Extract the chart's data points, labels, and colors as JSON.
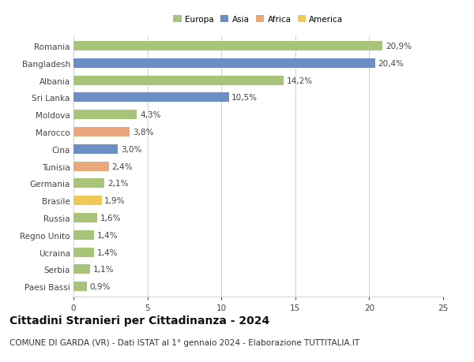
{
  "categories": [
    "Romania",
    "Bangladesh",
    "Albania",
    "Sri Lanka",
    "Moldova",
    "Marocco",
    "Cina",
    "Tunisia",
    "Germania",
    "Brasile",
    "Russia",
    "Regno Unito",
    "Ucraina",
    "Serbia",
    "Paesi Bassi"
  ],
  "values": [
    20.9,
    20.4,
    14.2,
    10.5,
    4.3,
    3.8,
    3.0,
    2.4,
    2.1,
    1.9,
    1.6,
    1.4,
    1.4,
    1.1,
    0.9
  ],
  "labels": [
    "20,9%",
    "20,4%",
    "14,2%",
    "10,5%",
    "4,3%",
    "3,8%",
    "3,0%",
    "2,4%",
    "2,1%",
    "1,9%",
    "1,6%",
    "1,4%",
    "1,4%",
    "1,1%",
    "0,9%"
  ],
  "colors": [
    "#a8c47a",
    "#6b8fc4",
    "#a8c47a",
    "#6b8fc4",
    "#a8c47a",
    "#e8a87c",
    "#6b8fc4",
    "#e8a87c",
    "#a8c47a",
    "#f0c855",
    "#a8c47a",
    "#a8c47a",
    "#a8c47a",
    "#a8c47a",
    "#a8c47a"
  ],
  "legend_labels": [
    "Europa",
    "Asia",
    "Africa",
    "America"
  ],
  "legend_colors": [
    "#a8c47a",
    "#6b8fc4",
    "#e8a87c",
    "#f0c855"
  ],
  "title": "Cittadini Stranieri per Cittadinanza - 2024",
  "subtitle": "COMUNE DI GARDA (VR) - Dati ISTAT al 1° gennaio 2024 - Elaborazione TUTTITALIA.IT",
  "xlim": [
    0,
    25
  ],
  "xticks": [
    0,
    5,
    10,
    15,
    20,
    25
  ],
  "background_color": "#ffffff",
  "grid_color": "#d0d0d0",
  "title_fontsize": 10,
  "subtitle_fontsize": 7.5,
  "label_fontsize": 7.5,
  "tick_fontsize": 7.5,
  "bar_height": 0.55
}
